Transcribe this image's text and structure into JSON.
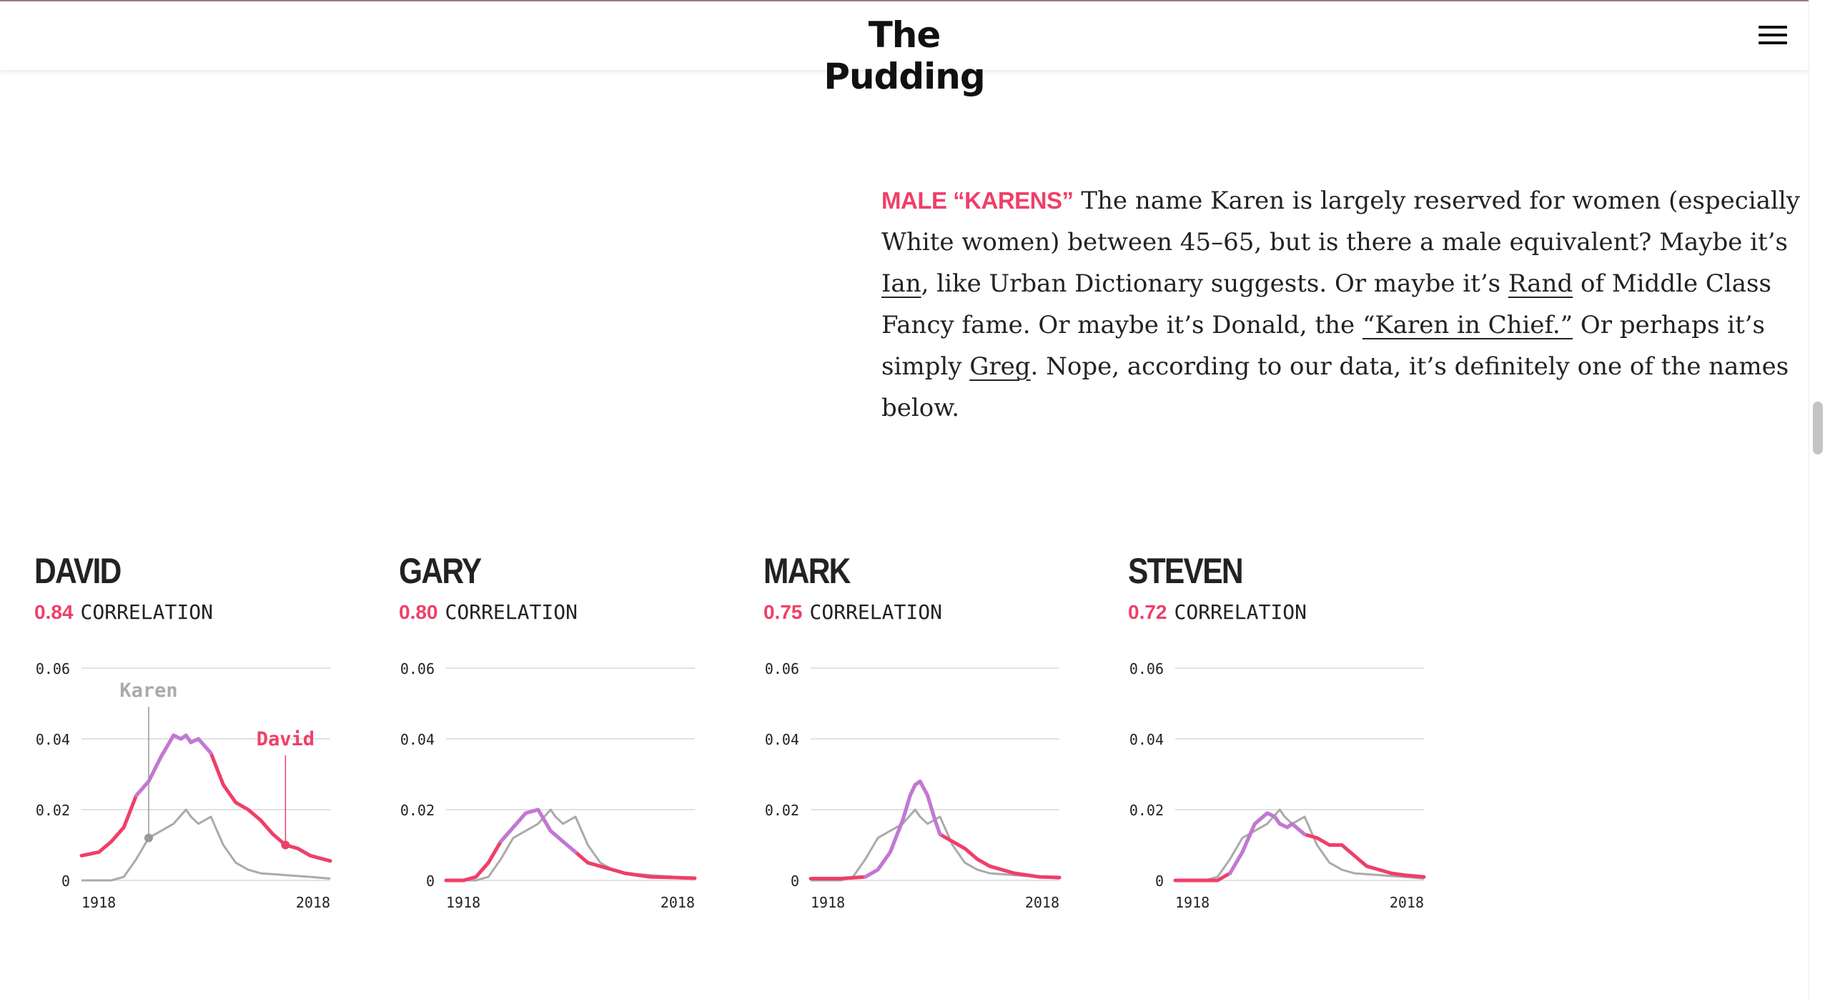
{
  "header": {
    "logo": "The Pudding",
    "menu_icon": "hamburger-menu-icon"
  },
  "intro": {
    "kicker": "MALE “KARENS”",
    "t1": " The name Karen is largely reserved for women (especially White women) between 45–65, but is there a male equivalent? Maybe it’s ",
    "link1": "Ian",
    "t2": ", like Urban Dictionary suggests. Or maybe it’s ",
    "link2": "Rand",
    "t3": " of Middle Class Fancy fame. Or maybe it’s Donald, the ",
    "link3": "“Karen in Chief.”",
    "t4": " Or perhaps it’s simply ",
    "link4": "Greg",
    "t5": ". Nope, according to our data, it’s definitely one of the names below."
  },
  "colors": {
    "accent": "#ef3f68",
    "overlap": "#b97fe0",
    "karen": "#aaaaaa",
    "grid": "#e2e2e2"
  },
  "cards": [
    {
      "name": "DAVID",
      "correlation": "0.84",
      "correlation_label": "CORRELATION"
    },
    {
      "name": "GARY",
      "correlation": "0.80",
      "correlation_label": "CORRELATION"
    },
    {
      "name": "MARK",
      "correlation": "0.75",
      "correlation_label": "CORRELATION"
    },
    {
      "name": "STEVEN",
      "correlation": "0.72",
      "correlation_label": "CORRELATION"
    }
  ],
  "chart_data": [
    {
      "type": "line",
      "ylim": [
        0,
        0.06
      ],
      "yticks": [
        "0.06",
        "0.04",
        "0.02",
        "0"
      ],
      "xlim": [
        1918,
        2018
      ],
      "xticks": [
        "1918",
        "2018"
      ],
      "annotations": [
        {
          "label": "Karen",
          "x": 1945,
          "y": 0.012
        },
        {
          "label": "David",
          "x": 2000,
          "y": 0.01
        }
      ],
      "series": [
        {
          "name": "Karen",
          "x": [
            1918,
            1930,
            1935,
            1940,
            1945,
            1950,
            1955,
            1960,
            1962,
            1965,
            1970,
            1975,
            1980,
            1985,
            1990,
            2000,
            2010,
            2018
          ],
          "y": [
            0,
            0,
            0.001,
            0.006,
            0.012,
            0.014,
            0.016,
            0.02,
            0.018,
            0.016,
            0.018,
            0.01,
            0.005,
            0.003,
            0.002,
            0.0015,
            0.001,
            0.0005
          ]
        },
        {
          "name": "David",
          "x": [
            1918,
            1925,
            1930,
            1935,
            1940,
            1945,
            1950,
            1955,
            1958,
            1960,
            1962,
            1965,
            1970,
            1975,
            1980,
            1985,
            1990,
            1995,
            2000,
            2005,
            2010,
            2018
          ],
          "y": [
            0.007,
            0.008,
            0.011,
            0.015,
            0.024,
            0.028,
            0.035,
            0.041,
            0.04,
            0.041,
            0.039,
            0.04,
            0.036,
            0.027,
            0.022,
            0.02,
            0.017,
            0.013,
            0.01,
            0.009,
            0.007,
            0.0055
          ]
        }
      ]
    },
    {
      "type": "line",
      "ylim": [
        0,
        0.06
      ],
      "yticks": [
        "0.06",
        "0.04",
        "0.02",
        "0"
      ],
      "xlim": [
        1918,
        2018
      ],
      "xticks": [
        "1918",
        "2018"
      ],
      "series": [
        {
          "name": "Karen",
          "x": [
            1918,
            1930,
            1935,
            1940,
            1945,
            1950,
            1955,
            1960,
            1962,
            1965,
            1970,
            1975,
            1980,
            1985,
            1990,
            2000,
            2010,
            2018
          ],
          "y": [
            0,
            0,
            0.001,
            0.006,
            0.012,
            0.014,
            0.016,
            0.02,
            0.018,
            0.016,
            0.018,
            0.01,
            0.005,
            0.003,
            0.002,
            0.0015,
            0.001,
            0.0005
          ]
        },
        {
          "name": "Gary",
          "x": [
            1918,
            1925,
            1930,
            1935,
            1940,
            1945,
            1950,
            1955,
            1960,
            1965,
            1970,
            1975,
            1980,
            1990,
            2000,
            2010,
            2018
          ],
          "y": [
            0,
            0,
            0.001,
            0.005,
            0.011,
            0.015,
            0.019,
            0.02,
            0.014,
            0.011,
            0.008,
            0.005,
            0.004,
            0.002,
            0.001,
            0.0008,
            0.0006
          ]
        }
      ]
    },
    {
      "type": "line",
      "ylim": [
        0,
        0.06
      ],
      "yticks": [
        "0.06",
        "0.04",
        "0.02",
        "0"
      ],
      "xlim": [
        1918,
        2018
      ],
      "xticks": [
        "1918",
        "2018"
      ],
      "series": [
        {
          "name": "Karen",
          "x": [
            1918,
            1930,
            1935,
            1940,
            1945,
            1950,
            1955,
            1960,
            1962,
            1965,
            1970,
            1975,
            1980,
            1985,
            1990,
            2000,
            2010,
            2018
          ],
          "y": [
            0,
            0,
            0.001,
            0.006,
            0.012,
            0.014,
            0.016,
            0.02,
            0.018,
            0.016,
            0.018,
            0.01,
            0.005,
            0.003,
            0.002,
            0.0015,
            0.001,
            0.0005
          ]
        },
        {
          "name": "Mark",
          "x": [
            1918,
            1930,
            1940,
            1945,
            1950,
            1955,
            1958,
            1960,
            1962,
            1965,
            1968,
            1970,
            1975,
            1980,
            1985,
            1990,
            2000,
            2010,
            2018
          ],
          "y": [
            0.0005,
            0.0005,
            0.001,
            0.003,
            0.008,
            0.017,
            0.024,
            0.027,
            0.028,
            0.024,
            0.017,
            0.013,
            0.011,
            0.009,
            0.006,
            0.004,
            0.002,
            0.001,
            0.0008
          ]
        }
      ]
    },
    {
      "type": "line",
      "ylim": [
        0,
        0.06
      ],
      "yticks": [
        "0.06",
        "0.04",
        "0.02",
        "0"
      ],
      "xlim": [
        1918,
        2018
      ],
      "xticks": [
        "1918",
        "2018"
      ],
      "series": [
        {
          "name": "Karen",
          "x": [
            1918,
            1930,
            1935,
            1940,
            1945,
            1950,
            1955,
            1960,
            1962,
            1965,
            1970,
            1975,
            1980,
            1985,
            1990,
            2000,
            2010,
            2018
          ],
          "y": [
            0,
            0,
            0.001,
            0.006,
            0.012,
            0.014,
            0.016,
            0.02,
            0.018,
            0.016,
            0.018,
            0.01,
            0.005,
            0.003,
            0.002,
            0.0015,
            0.001,
            0.0005
          ]
        },
        {
          "name": "Steven",
          "x": [
            1918,
            1935,
            1940,
            1945,
            1950,
            1955,
            1958,
            1960,
            1963,
            1965,
            1970,
            1975,
            1980,
            1985,
            1990,
            1995,
            2000,
            2005,
            2010,
            2018
          ],
          "y": [
            0,
            0,
            0.002,
            0.008,
            0.016,
            0.019,
            0.018,
            0.016,
            0.015,
            0.016,
            0.013,
            0.012,
            0.01,
            0.01,
            0.007,
            0.004,
            0.003,
            0.002,
            0.0015,
            0.001
          ]
        }
      ]
    }
  ]
}
